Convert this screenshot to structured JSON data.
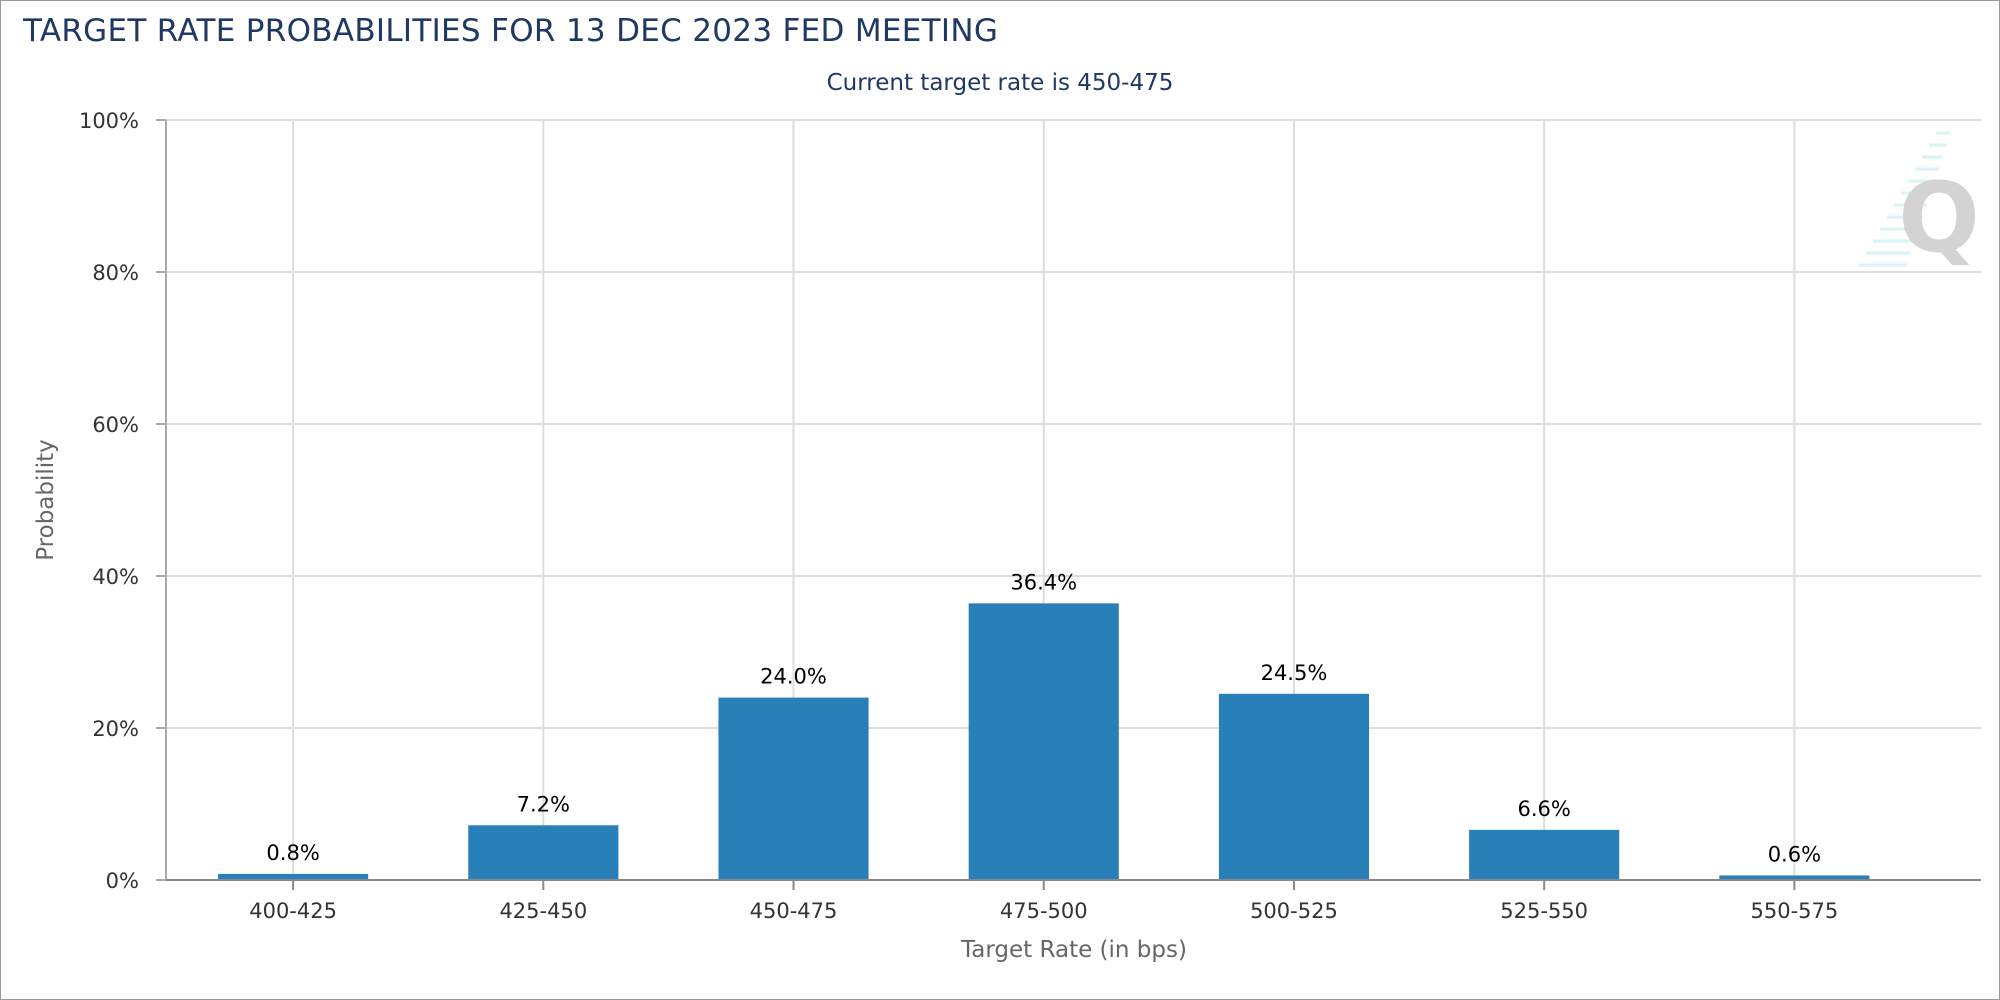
{
  "page": {
    "title": "TARGET RATE PROBABILITIES FOR 13 DEC 2023 FED MEETING"
  },
  "watermark": {
    "icon": "quikstrike-q-logo-icon",
    "letter": "Q"
  },
  "chart_data": {
    "type": "bar",
    "title": "TARGET RATE PROBABILITIES FOR 13 DEC 2023 FED MEETING",
    "subtitle": "Current target rate is 450-475",
    "xlabel": "Target Rate (in bps)",
    "ylabel": "Probability",
    "ylim": [
      0,
      100
    ],
    "yticks": [
      0,
      20,
      40,
      60,
      80,
      100
    ],
    "ytick_labels": [
      "0%",
      "20%",
      "40%",
      "60%",
      "80%",
      "100%"
    ],
    "categories": [
      "400-425",
      "425-450",
      "450-475",
      "475-500",
      "500-525",
      "525-550",
      "550-575"
    ],
    "values": [
      0.8,
      7.2,
      24.0,
      36.4,
      24.5,
      6.6,
      0.6
    ],
    "value_labels": [
      "0.8%",
      "7.2%",
      "24.0%",
      "36.4%",
      "24.5%",
      "6.6%",
      "0.6%"
    ],
    "grid": true,
    "bar_color": "#2980b9",
    "grid_color": "#dddddd"
  }
}
